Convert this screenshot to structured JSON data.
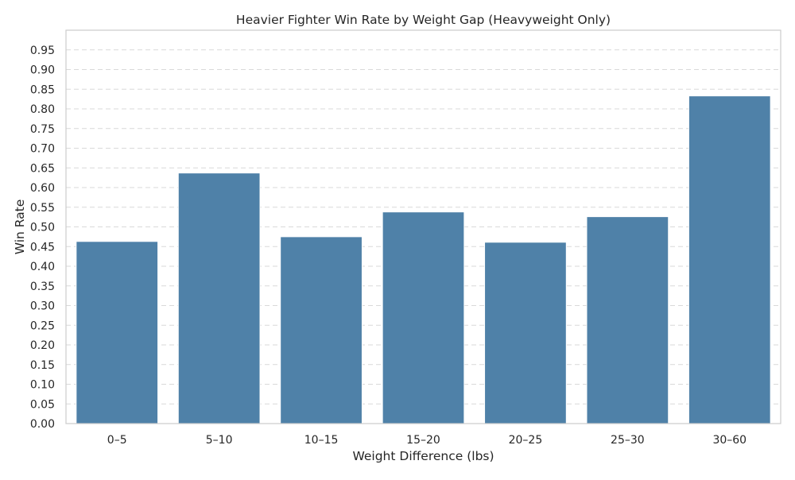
{
  "chart_data": {
    "type": "bar",
    "title": "Heavier Fighter Win Rate by Weight Gap (Heavyweight Only)",
    "xlabel": "Weight Difference (lbs)",
    "ylabel": "Win Rate",
    "categories": [
      "0–5",
      "5–10",
      "10–15",
      "15–20",
      "20–25",
      "25–30",
      "30–60"
    ],
    "values": [
      0.463,
      0.637,
      0.475,
      0.538,
      0.461,
      0.526,
      0.833
    ],
    "ylim": [
      0,
      1.0
    ],
    "yticks": [
      "0.00",
      "0.05",
      "0.10",
      "0.15",
      "0.20",
      "0.25",
      "0.30",
      "0.35",
      "0.40",
      "0.45",
      "0.50",
      "0.55",
      "0.60",
      "0.65",
      "0.70",
      "0.75",
      "0.80",
      "0.85",
      "0.90",
      "0.95"
    ],
    "ytick_step": 0.05,
    "grid": "y-dashed",
    "legend": "none",
    "colors": {
      "bar": "#4f81a8",
      "bar_edge": "#ffffff",
      "grid": "#d9d9d9",
      "frame": "#cccccc",
      "text": "#262626"
    }
  }
}
